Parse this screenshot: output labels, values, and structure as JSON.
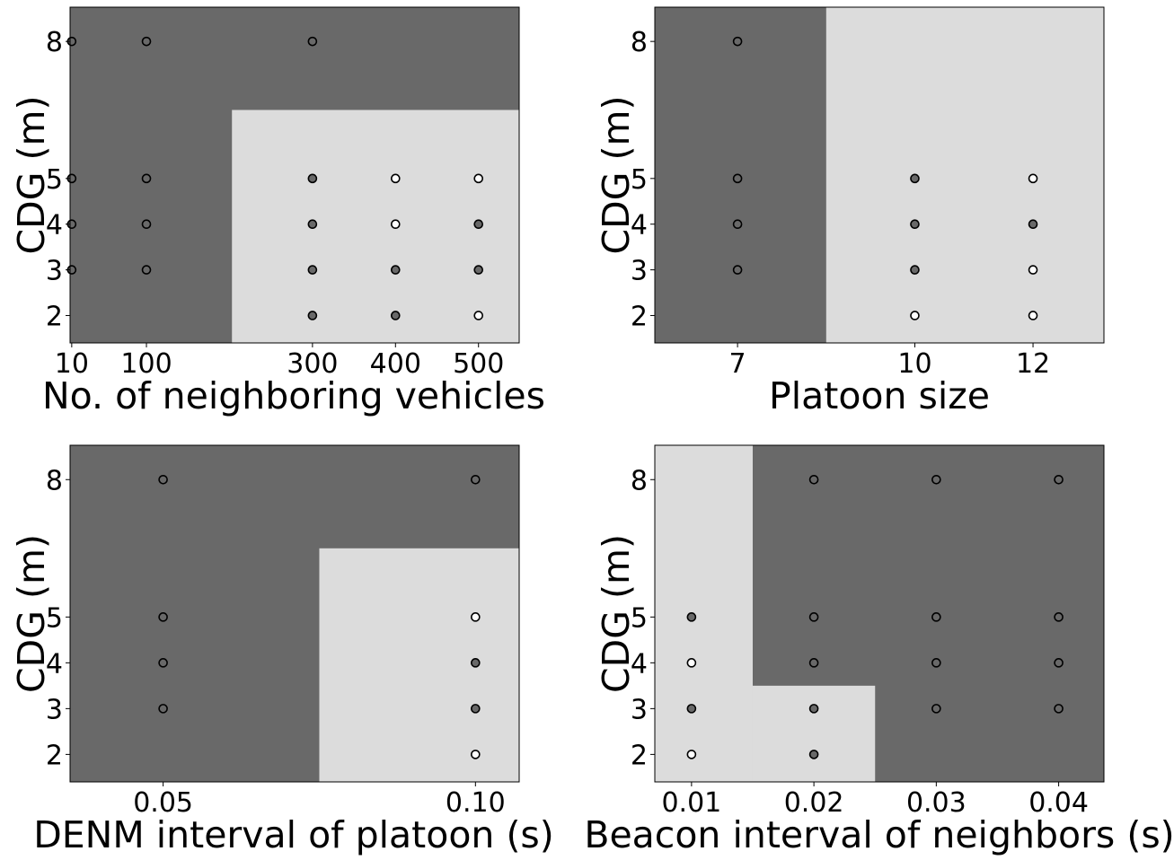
{
  "chart_data": [
    {
      "type": "scatter",
      "xlabel": "No. of neighboring vehicles",
      "ylabel": "CDG (m)",
      "xlim": [
        8,
        549
      ],
      "ylim": [
        1.4,
        8.75
      ],
      "xticks": [
        10,
        100,
        300,
        400,
        500
      ],
      "xtick_labels": [
        "10",
        "100",
        "300",
        "400",
        "500"
      ],
      "yticks": [
        2,
        3,
        4,
        5,
        8
      ],
      "ytick_labels": [
        "2",
        "3",
        "4",
        "5",
        "8"
      ],
      "background_color": "#696969",
      "region_color": "#dcdcdc",
      "regions": [
        {
          "x": [
            203,
            549
          ],
          "y": [
            1.4,
            6.5
          ]
        }
      ],
      "point_colors": {
        "dark": "#696969",
        "light": "#ffffff"
      },
      "points": [
        {
          "x": 10,
          "y": 3,
          "class": "dark"
        },
        {
          "x": 10,
          "y": 4,
          "class": "dark"
        },
        {
          "x": 10,
          "y": 5,
          "class": "dark"
        },
        {
          "x": 10,
          "y": 8,
          "class": "dark"
        },
        {
          "x": 100,
          "y": 3,
          "class": "dark"
        },
        {
          "x": 100,
          "y": 4,
          "class": "dark"
        },
        {
          "x": 100,
          "y": 5,
          "class": "dark"
        },
        {
          "x": 100,
          "y": 8,
          "class": "dark"
        },
        {
          "x": 300,
          "y": 2,
          "class": "dark"
        },
        {
          "x": 300,
          "y": 3,
          "class": "dark"
        },
        {
          "x": 300,
          "y": 4,
          "class": "dark"
        },
        {
          "x": 300,
          "y": 5,
          "class": "dark"
        },
        {
          "x": 300,
          "y": 8,
          "class": "dark"
        },
        {
          "x": 400,
          "y": 2,
          "class": "dark"
        },
        {
          "x": 400,
          "y": 3,
          "class": "dark"
        },
        {
          "x": 400,
          "y": 4,
          "class": "light"
        },
        {
          "x": 400,
          "y": 5,
          "class": "light"
        },
        {
          "x": 500,
          "y": 2,
          "class": "light"
        },
        {
          "x": 500,
          "y": 3,
          "class": "dark"
        },
        {
          "x": 500,
          "y": 4,
          "class": "dark"
        },
        {
          "x": 500,
          "y": 5,
          "class": "light"
        }
      ]
    },
    {
      "type": "scatter",
      "xlabel": "Platoon size",
      "ylabel": "CDG (m)",
      "xlim": [
        5.6,
        13.2
      ],
      "ylim": [
        1.4,
        8.75
      ],
      "xticks": [
        7,
        10,
        12
      ],
      "xtick_labels": [
        "7",
        "10",
        "12"
      ],
      "yticks": [
        2,
        3,
        4,
        5,
        8
      ],
      "ytick_labels": [
        "2",
        "3",
        "4",
        "5",
        "8"
      ],
      "background_color": "#696969",
      "region_color": "#dcdcdc",
      "regions": [
        {
          "x": [
            8.5,
            13.2
          ],
          "y": [
            1.4,
            8.75
          ]
        }
      ],
      "point_colors": {
        "dark": "#696969",
        "light": "#ffffff"
      },
      "points": [
        {
          "x": 7,
          "y": 3,
          "class": "dark"
        },
        {
          "x": 7,
          "y": 4,
          "class": "dark"
        },
        {
          "x": 7,
          "y": 5,
          "class": "dark"
        },
        {
          "x": 7,
          "y": 8,
          "class": "dark"
        },
        {
          "x": 10,
          "y": 2,
          "class": "light"
        },
        {
          "x": 10,
          "y": 3,
          "class": "dark"
        },
        {
          "x": 10,
          "y": 4,
          "class": "dark"
        },
        {
          "x": 10,
          "y": 5,
          "class": "dark"
        },
        {
          "x": 12,
          "y": 2,
          "class": "light"
        },
        {
          "x": 12,
          "y": 3,
          "class": "light"
        },
        {
          "x": 12,
          "y": 4,
          "class": "dark"
        },
        {
          "x": 12,
          "y": 5,
          "class": "light"
        }
      ]
    },
    {
      "type": "scatter",
      "xlabel": "DENM interval of platoon (s)",
      "ylabel": "CDG (m)",
      "xlim": [
        0.0351,
        0.107
      ],
      "ylim": [
        1.4,
        8.75
      ],
      "xticks": [
        0.05,
        0.1
      ],
      "xtick_labels": [
        "0.05",
        "0.10"
      ],
      "yticks": [
        2,
        3,
        4,
        5,
        8
      ],
      "ytick_labels": [
        "2",
        "3",
        "4",
        "5",
        "8"
      ],
      "background_color": "#696969",
      "region_color": "#dcdcdc",
      "regions": [
        {
          "x": [
            0.075,
            0.107
          ],
          "y": [
            1.4,
            6.5
          ]
        }
      ],
      "point_colors": {
        "dark": "#696969",
        "light": "#ffffff"
      },
      "points": [
        {
          "x": 0.05,
          "y": 3,
          "class": "dark"
        },
        {
          "x": 0.05,
          "y": 4,
          "class": "dark"
        },
        {
          "x": 0.05,
          "y": 5,
          "class": "dark"
        },
        {
          "x": 0.05,
          "y": 8,
          "class": "dark"
        },
        {
          "x": 0.1,
          "y": 2,
          "class": "light"
        },
        {
          "x": 0.1,
          "y": 3,
          "class": "dark"
        },
        {
          "x": 0.1,
          "y": 4,
          "class": "dark"
        },
        {
          "x": 0.1,
          "y": 5,
          "class": "light"
        },
        {
          "x": 0.1,
          "y": 8,
          "class": "dark"
        }
      ]
    },
    {
      "type": "scatter",
      "xlabel": "Beacon interval of neighbors (s)",
      "ylabel": "CDG (m)",
      "xlim": [
        0.007,
        0.0437
      ],
      "ylim": [
        1.4,
        8.75
      ],
      "xticks": [
        0.01,
        0.02,
        0.03,
        0.04
      ],
      "xtick_labels": [
        "0.01",
        "0.02",
        "0.03",
        "0.04"
      ],
      "yticks": [
        2,
        3,
        4,
        5,
        8
      ],
      "ytick_labels": [
        "2",
        "3",
        "4",
        "5",
        "8"
      ],
      "background_color": "#696969",
      "region_color": "#dcdcdc",
      "regions": [
        {
          "x": [
            0.007,
            0.015
          ],
          "y": [
            1.4,
            8.75
          ]
        },
        {
          "x": [
            0.015,
            0.025
          ],
          "y": [
            1.4,
            3.5
          ]
        }
      ],
      "point_colors": {
        "dark": "#696969",
        "light": "#ffffff"
      },
      "points": [
        {
          "x": 0.01,
          "y": 2,
          "class": "light"
        },
        {
          "x": 0.01,
          "y": 3,
          "class": "dark"
        },
        {
          "x": 0.01,
          "y": 4,
          "class": "light"
        },
        {
          "x": 0.01,
          "y": 5,
          "class": "dark"
        },
        {
          "x": 0.02,
          "y": 2,
          "class": "dark"
        },
        {
          "x": 0.02,
          "y": 3,
          "class": "dark"
        },
        {
          "x": 0.02,
          "y": 4,
          "class": "dark"
        },
        {
          "x": 0.02,
          "y": 5,
          "class": "dark"
        },
        {
          "x": 0.02,
          "y": 8,
          "class": "dark"
        },
        {
          "x": 0.03,
          "y": 3,
          "class": "dark"
        },
        {
          "x": 0.03,
          "y": 4,
          "class": "dark"
        },
        {
          "x": 0.03,
          "y": 5,
          "class": "dark"
        },
        {
          "x": 0.03,
          "y": 8,
          "class": "dark"
        },
        {
          "x": 0.04,
          "y": 3,
          "class": "dark"
        },
        {
          "x": 0.04,
          "y": 4,
          "class": "dark"
        },
        {
          "x": 0.04,
          "y": 5,
          "class": "dark"
        },
        {
          "x": 0.04,
          "y": 8,
          "class": "dark"
        }
      ]
    }
  ]
}
